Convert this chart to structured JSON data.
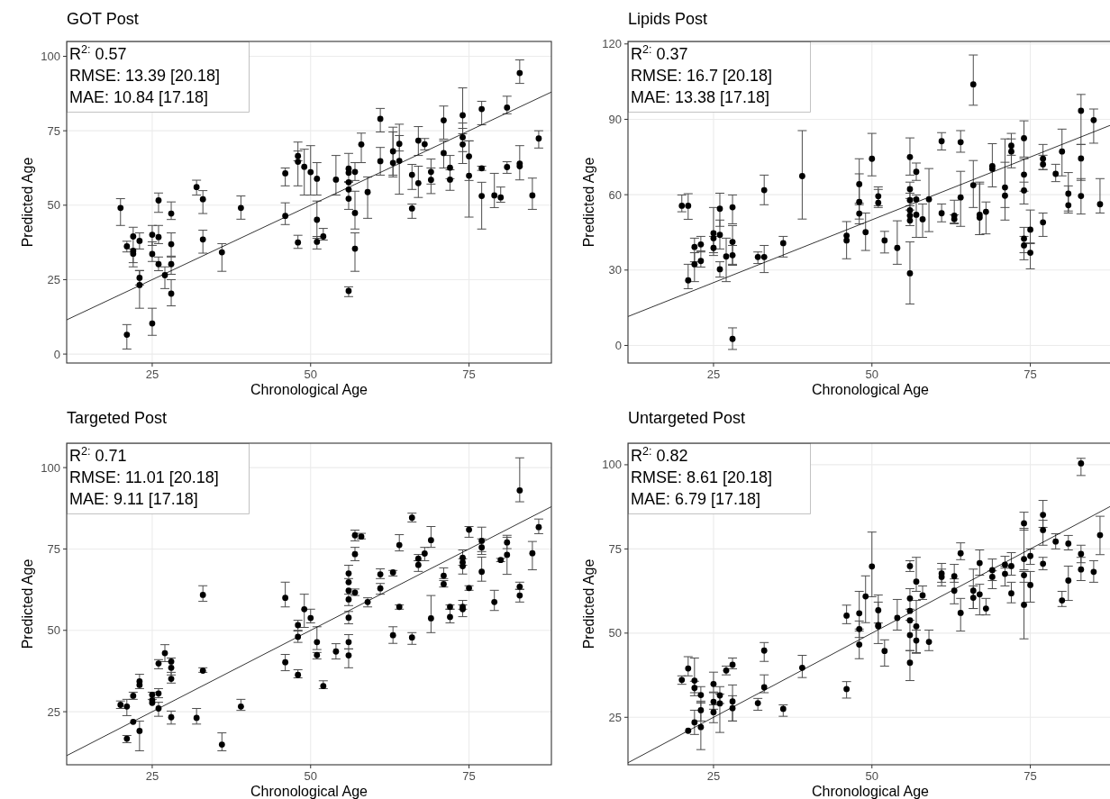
{
  "chart_data": [
    {
      "type": "scatter",
      "title": "GOT Post",
      "xlabel": "Chronological Age",
      "ylabel": "Predicted Age",
      "annotations": [
        "R$^{2:}$ 0.57",
        "RMSE: 13.39 [20.18]",
        "MAE: 10.84 [17.18]"
      ],
      "xlim": [
        11.5,
        88
      ],
      "ylim": [
        -3,
        105
      ],
      "xticks": [
        25,
        50,
        75
      ],
      "yticks": [
        0,
        25,
        50,
        75,
        100
      ],
      "grid": true,
      "series": [
        {
          "marker": "circle",
          "color": "#000000",
          "x": [
            20,
            21,
            21,
            22,
            22,
            22,
            23,
            23,
            23,
            25,
            25,
            25,
            26,
            26,
            26,
            27,
            28,
            28,
            28,
            28,
            32,
            33,
            33,
            36,
            39,
            46,
            46,
            48,
            48,
            48,
            49,
            50,
            51,
            51,
            51,
            52,
            54,
            56,
            56,
            56,
            56,
            56,
            56,
            57,
            57,
            57,
            58,
            59,
            61,
            61,
            63,
            63,
            64,
            64,
            66,
            66,
            67,
            67,
            68,
            69,
            69,
            71,
            71,
            72,
            72,
            74,
            74,
            74,
            75,
            75,
            77,
            77,
            77,
            79,
            80,
            81,
            81,
            83,
            83,
            83,
            85,
            86
          ],
          "values": [
            49.1,
            36.2,
            6.5,
            39.5,
            33.7,
            34.7,
            38,
            25.6,
            23.2,
            40.1,
            33.6,
            10.3,
            51.6,
            39.3,
            30.2,
            26.5,
            47.2,
            36.9,
            30.2,
            20.3,
            56.1,
            52,
            38.5,
            34.2,
            49.1,
            46.4,
            60.7,
            37.5,
            64.6,
            66.5,
            62.9,
            61.1,
            58.9,
            45.1,
            37.7,
            39.5,
            58.6,
            62.3,
            60.9,
            57.7,
            55.3,
            52.2,
            21.2,
            61.2,
            47.4,
            35.4,
            70.4,
            54.4,
            79,
            64.8,
            64.2,
            68.1,
            64.9,
            70.6,
            48.9,
            60.2,
            71.7,
            57.4,
            70.5,
            61.2,
            58.5,
            78.5,
            67.5,
            62.6,
            58.6,
            80.2,
            72.8,
            70.4,
            66.4,
            59.9,
            82.3,
            62.4,
            53.1,
            53.3,
            52.6,
            82.8,
            62.8,
            94.4,
            64,
            63.1,
            53.3,
            72.4
          ],
          "errors": [
            [
              43.2,
              52.2
            ],
            [
              34.3,
              37.9
            ],
            [
              1.7,
              9.9
            ],
            [
              30.7,
              42.6
            ],
            [
              29.3,
              35.3
            ],
            null,
            [
              35.3,
              40.7
            ],
            [
              23.2,
              28.1
            ],
            [
              15.4,
              28
            ],
            [
              36.5,
              43.2
            ],
            [
              31.1,
              37.7
            ],
            [
              6.3,
              15.4
            ],
            [
              47.6,
              54.1
            ],
            [
              37.1,
              43.2
            ],
            [
              28,
              32.6
            ],
            [
              22,
              29.3
            ],
            [
              45.2,
              51.1
            ],
            [
              32.9,
              40.7
            ],
            [
              26.8,
              32.6
            ],
            [
              16.2,
              25
            ],
            [
              53.4,
              58.4
            ],
            [
              47.2,
              54.9
            ],
            [
              33.9,
              41.6
            ],
            [
              27.8,
              37.1
            ],
            [
              45.3,
              53.1
            ],
            [
              43.5,
              50.8
            ],
            [
              56.5,
              62.5
            ],
            [
              35.5,
              39.9
            ],
            [
              56.5,
              71.2
            ],
            [
              64.9,
              68.2
            ],
            [
              53.4,
              68.8
            ],
            [
              53.4,
              70
            ],
            [
              53.4,
              64.3
            ],
            [
              38.9,
              51.4
            ],
            [
              35.3,
              39.5
            ],
            [
              38.3,
              42.2
            ],
            [
              53.4,
              66.7
            ],
            [
              57.9,
              67.4
            ],
            null,
            null,
            null,
            [
              48.6,
              57.7
            ],
            [
              19.3,
              22.6
            ],
            [
              58.3,
              64.3
            ],
            [
              42,
              54.7
            ],
            [
              27.8,
              40.7
            ],
            [
              64.3,
              74.2
            ],
            [
              45.6,
              59.5
            ],
            [
              74.6,
              82.5
            ],
            [
              60.1,
              69.4
            ],
            [
              59.5,
              76.2
            ],
            [
              60.1,
              74.6
            ],
            [
              53.7,
              73.4
            ],
            [
              68.2,
              77.2
            ],
            [
              45.6,
              50.4
            ],
            [
              55.3,
              63.7
            ],
            [
              66.7,
              76.4
            ],
            [
              52.6,
              63.1
            ],
            [
              68.6,
              72.4
            ],
            [
              57.1,
              65.5
            ],
            [
              53.9,
              62.5
            ],
            [
              72.2,
              83.3
            ],
            [
              62.5,
              71.6
            ],
            [
              58.9,
              66.7
            ],
            [
              55,
              61.9
            ],
            [
              74,
              89.4
            ],
            [
              68,
              77.6
            ],
            [
              64,
              75.8
            ],
            [
              58.3,
              71.6
            ],
            [
              46,
              71.6
            ],
            [
              77,
              84.9
            ],
            [
              61.7,
              63.1
            ],
            [
              42,
              57.7
            ],
            [
              49.2,
              60.7
            ],
            [
              51,
              56.1
            ],
            [
              80.7,
              86.6
            ],
            [
              60.7,
              64.6
            ],
            [
              90.9,
              98.8
            ],
            [
              58.5,
              70
            ],
            null,
            [
              48.6,
              59.1
            ],
            [
              69.2,
              75
            ]
          ]
        },
        {
          "type": "line",
          "color": "#000000",
          "x": [
            11.5,
            88
          ],
          "values": [
            11.5,
            88
          ]
        }
      ]
    },
    {
      "type": "scatter",
      "title": "Lipids Post",
      "xlabel": "Chronological Age",
      "ylabel": "Predicted Age",
      "annotations": [
        "R$^{2:}$ 0.37",
        "RMSE: 16.7 [20.18]",
        "MAE: 13.38 [17.18]"
      ],
      "xlim": [
        11.5,
        88
      ],
      "ylim": [
        -7,
        121
      ],
      "xticks": [
        25,
        50,
        75
      ],
      "yticks": [
        0,
        30,
        60,
        90,
        120
      ],
      "grid": true,
      "series": [
        {
          "marker": "circle",
          "color": "#000000",
          "x": [
            20,
            21,
            21,
            22,
            22,
            23,
            23,
            25,
            25,
            25,
            26,
            26,
            26,
            27,
            28,
            28,
            28,
            28,
            32,
            33,
            33,
            36,
            39,
            46,
            46,
            48,
            48,
            48,
            49,
            50,
            51,
            51,
            52,
            54,
            56,
            56,
            56,
            56,
            56,
            56,
            56,
            57,
            57,
            57,
            58,
            59,
            61,
            61,
            63,
            63,
            64,
            64,
            66,
            66,
            67,
            67,
            68,
            69,
            69,
            71,
            71,
            72,
            72,
            74,
            74,
            74,
            74,
            74,
            75,
            75,
            77,
            77,
            77,
            79,
            80,
            81,
            81,
            83,
            83,
            83,
            85,
            86
          ],
          "values": [
            55.6,
            55.6,
            25.9,
            39.2,
            32.3,
            40.2,
            33.6,
            44.7,
            42.7,
            38.8,
            54.4,
            44,
            30.3,
            35.4,
            55,
            41.2,
            35.9,
            2.6,
            35.2,
            35.2,
            61.8,
            40.7,
            67.4,
            41.8,
            43.7,
            64.2,
            57.1,
            52.5,
            45.1,
            74.3,
            59.4,
            56.8,
            41.8,
            38.8,
            75,
            62.2,
            57.8,
            53.8,
            51.7,
            49.7,
            28.7,
            69.1,
            58.1,
            52,
            50.2,
            58.2,
            52.6,
            81.3,
            51.7,
            50.3,
            58.9,
            80.9,
            103.9,
            63.8,
            52,
            50.9,
            53.2,
            70.3,
            71.4,
            59.6,
            62.9,
            79.5,
            77.2,
            82.5,
            68,
            61.7,
            42.5,
            39.8,
            46.1,
            36.9,
            74.3,
            72.1,
            49,
            68.3,
            77.2,
            60.4,
            55.8,
            93.4,
            74.4,
            59.5,
            89.7,
            56.2
          ],
          "errors": [
            [
              53.2,
              59.9
            ],
            [
              50.2,
              60.4
            ],
            [
              22.6,
              32.3
            ],
            [
              33.3,
              42.7
            ],
            [
              25.4,
              36.9
            ],
            [
              37.2,
              43.4
            ],
            [
              31.2,
              37.6
            ],
            [
              36.9,
              54.9
            ],
            null,
            [
              35.8,
              43.4
            ],
            [
              47.4,
              60.6
            ],
            [
              38.4,
              49.9
            ],
            [
              27.2,
              33.3
            ],
            [
              25.4,
              42.7
            ],
            [
              48.4,
              59.9
            ],
            [
              32.3,
              47.7
            ],
            [
              31.9,
              39.8
            ],
            [
              -1.6,
              7
            ],
            [
              32.6,
              37.2
            ],
            [
              29,
              39.8
            ],
            [
              56,
              67.8
            ],
            [
              35.2,
              43.4
            ],
            [
              50.3,
              85.5
            ],
            [
              34.5,
              49.3
            ],
            null,
            [
              56,
              74.3
            ],
            [
              50.3,
              68.3
            ],
            [
              48.4,
              56.6
            ],
            [
              37.8,
              52.7
            ],
            [
              67.5,
              84.4
            ],
            [
              55.6,
              63.1
            ],
            [
              54.9,
              62.1
            ],
            [
              36.8,
              45.4
            ],
            [
              32.3,
              49.6
            ],
            [
              67.8,
              82.6
            ],
            [
              58.5,
              65
            ],
            [
              53.9,
              60.6
            ],
            null,
            null,
            [
              47.7,
              55.6
            ],
            [
              16.5,
              41.2
            ],
            [
              65.7,
              72.6
            ],
            null,
            [
              43,
              59.9
            ],
            [
              43,
              56.3
            ],
            [
              45.3,
              70.4
            ],
            [
              49.2,
              56.3
            ],
            [
              77.8,
              84.7
            ],
            [
              48.7,
              57.8
            ],
            [
              48.4,
              52
            ],
            [
              47.4,
              69.3
            ],
            [
              76.9,
              85.5
            ],
            [
              95.6,
              115.6
            ],
            [
              54.9,
              73.6
            ],
            [
              44.1,
              65
            ],
            [
              44.1,
              64.3
            ],
            [
              44.4,
              57.1
            ],
            [
              63.1,
              80.3
            ],
            null,
            [
              49.9,
              82.2
            ],
            [
              54.9,
              72.9
            ],
            [
              75.7,
              84.4
            ],
            [
              70.7,
              82.2
            ],
            [
              75,
              89.4
            ],
            [
              61.4,
              74.3
            ],
            [
              56.3,
              65
            ],
            [
              36.9,
              47
            ],
            [
              34.1,
              43.4
            ],
            [
              40.5,
              53.9
            ],
            [
              30.5,
              40.8
            ],
            [
              70,
              80
            ],
            [
              70,
              75.7
            ],
            [
              43.4,
              52.7
            ],
            [
              65.2,
              72.1
            ],
            [
              67.5,
              86.1
            ],
            [
              52.7,
              68.8
            ],
            [
              53.5,
              63.5
            ],
            [
              80,
              99.9
            ],
            [
              65.7,
              80
            ],
            [
              52.3,
              66.4
            ],
            [
              80.5,
              94.1
            ],
            [
              52.7,
              66.4
            ]
          ]
        },
        {
          "type": "line",
          "color": "#000000",
          "x": [
            11.5,
            88
          ],
          "values": [
            11.5,
            88
          ]
        }
      ]
    },
    {
      "type": "scatter",
      "title": "Targeted Post",
      "xlabel": "Chronological Age",
      "ylabel": "Predicted Age",
      "annotations": [
        "R$^{2:}$ 0.71",
        "RMSE: 11.01 [20.18]",
        "MAE: 9.11 [17.18]"
      ],
      "xlim": [
        11.5,
        88
      ],
      "ylim": [
        8.7,
        107.5
      ],
      "xticks": [
        25,
        50,
        75
      ],
      "yticks": [
        25,
        50,
        75,
        100
      ],
      "grid": true,
      "series": [
        {
          "marker": "circle",
          "color": "#000000",
          "x": [
            20,
            21,
            21,
            22,
            22,
            23,
            23,
            23,
            25,
            25,
            25,
            26,
            26,
            26,
            27,
            28,
            28,
            28,
            28,
            32,
            33,
            33,
            36,
            39,
            46,
            46,
            48,
            48,
            48,
            49,
            50,
            51,
            51,
            52,
            54,
            56,
            56,
            56,
            56,
            56,
            56,
            56,
            57,
            57,
            57,
            58,
            59,
            61,
            61,
            63,
            63,
            64,
            64,
            66,
            66,
            67,
            67,
            68,
            69,
            69,
            71,
            71,
            72,
            72,
            74,
            74,
            74,
            74,
            74,
            75,
            75,
            77,
            77,
            77,
            79,
            80,
            81,
            81,
            83,
            83,
            83,
            85,
            86
          ],
          "values": [
            27.1,
            26.6,
            16.7,
            29.9,
            21.9,
            34.3,
            33.2,
            19.1,
            30.2,
            28.5,
            27.7,
            30.6,
            26,
            39.8,
            43,
            38.5,
            40.4,
            35.1,
            23.3,
            23.1,
            37.6,
            60.9,
            14.9,
            26.6,
            60,
            40.2,
            36.3,
            48,
            51.6,
            56.5,
            53.8,
            46.4,
            42.4,
            32.9,
            43.5,
            42.3,
            46.4,
            53.9,
            59.5,
            62.2,
            64.8,
            67.5,
            79.2,
            73.4,
            61.6,
            78.8,
            58.7,
            62.9,
            67.2,
            67.8,
            48.5,
            76.2,
            57.2,
            84.6,
            47.8,
            70.1,
            72,
            73.6,
            77.7,
            53.7,
            66.8,
            64.2,
            57.2,
            54.1,
            72.3,
            70.9,
            69.7,
            57.2,
            56.5,
            80.9,
            63,
            77.5,
            75.5,
            68,
            58.7,
            71.6,
            77,
            73.2,
            93,
            63.4,
            60.7,
            73.7,
            81.7
          ],
          "errors": [
            [
              26,
              28.3
            ],
            [
              23.8,
              28.8
            ],
            [
              15.5,
              17.7
            ],
            [
              28.8,
              31
            ],
            null,
            [
              32.1,
              36.5
            ],
            null,
            [
              13,
              22.1
            ],
            [
              28.8,
              31
            ],
            null,
            null,
            [
              29.3,
              32.1
            ],
            [
              23.6,
              27.9
            ],
            [
              38.2,
              41
            ],
            [
              40.4,
              45.6
            ],
            [
              36.3,
              41.5
            ],
            null,
            [
              33.8,
              37.1
            ],
            [
              21.2,
              25.2
            ],
            [
              21.2,
              26
            ],
            [
              37.1,
              38.5
            ],
            [
              58.9,
              63.7
            ],
            [
              13,
              18.5
            ],
            [
              25.4,
              28.8
            ],
            [
              57.2,
              64.8
            ],
            [
              37.6,
              42.6
            ],
            [
              35.4,
              37.9
            ],
            [
              46.3,
              49.8
            ],
            [
              50,
              53.1
            ],
            [
              50.9,
              61.1
            ],
            [
              52.3,
              56.5
            ],
            [
              44.1,
              51.1
            ],
            [
              41.2,
              43.2
            ],
            [
              32.1,
              34.5
            ],
            [
              41.2,
              45.9
            ],
            [
              38.5,
              44.3
            ],
            [
              44.3,
              48.7
            ],
            [
              52,
              55.8
            ],
            [
              57.6,
              61.1
            ],
            null,
            null,
            [
              65.9,
              70
            ],
            [
              77.5,
              80.8
            ],
            [
              71.4,
              75.5
            ],
            [
              60.7,
              62.7
            ],
            [
              78.1,
              79.8
            ],
            [
              57.2,
              60
            ],
            [
              61.1,
              64.4
            ],
            [
              65.9,
              68.9
            ],
            [
              66.7,
              68.4
            ],
            [
              46,
              51.1
            ],
            [
              74.4,
              79.4
            ],
            [
              56.5,
              57.8
            ],
            [
              83.3,
              86
            ],
            [
              45.7,
              49.3
            ],
            [
              68.1,
              71.4
            ],
            [
              71.4,
              73.3
            ],
            [
              71.4,
              75.5
            ],
            [
              75.5,
              81.9
            ],
            [
              49.3,
              60.7
            ],
            [
              65.9,
              69.2
            ],
            [
              63.3,
              65.3
            ],
            [
              56.5,
              57.8
            ],
            [
              52.3,
              56.5
            ],
            [
              70,
              74.7
            ],
            null,
            [
              67.3,
              72
            ],
            [
              56.5,
              59.2
            ],
            [
              54.2,
              57.8
            ],
            [
              78.6,
              81.9
            ],
            [
              62.3,
              63.7
            ],
            [
              74.2,
              81.7
            ],
            [
              73.3,
              78.1
            ],
            [
              65.1,
              72.5
            ],
            [
              56.1,
              62.3
            ],
            [
              71.1,
              72.1
            ],
            [
              75.1,
              79.2
            ],
            [
              67.2,
              78.6
            ],
            [
              89.5,
              103
            ],
            [
              62.6,
              64.8
            ],
            [
              58.7,
              62.6
            ],
            [
              68.6,
              77.3
            ],
            [
              79.7,
              84.2
            ]
          ]
        },
        {
          "type": "line",
          "color": "#000000",
          "x": [
            11.5,
            88
          ],
          "values": [
            11.5,
            88
          ]
        }
      ]
    },
    {
      "type": "scatter",
      "title": "Untargeted Post",
      "xlabel": "Chronological Age",
      "ylabel": "Predicted Age",
      "annotations": [
        "R$^{2:}$ 0.82",
        "RMSE: 8.61 [20.18]",
        "MAE: 6.79 [17.18]"
      ],
      "xlim": [
        11.5,
        88
      ],
      "ylim": [
        10.9,
        106.4
      ],
      "xticks": [
        25,
        50,
        75
      ],
      "yticks": [
        25,
        50,
        75,
        100
      ],
      "grid": true,
      "series": [
        {
          "marker": "circle",
          "color": "#000000",
          "x": [
            20,
            21,
            21,
            22,
            22,
            22,
            23,
            23,
            23,
            25,
            25,
            25,
            26,
            26,
            27,
            28,
            28,
            28,
            32,
            33,
            33,
            36,
            39,
            46,
            46,
            48,
            48,
            48,
            49,
            50,
            51,
            51,
            51,
            52,
            54,
            56,
            56,
            56,
            56,
            56,
            56,
            57,
            57,
            57,
            58,
            59,
            61,
            61,
            63,
            63,
            64,
            64,
            66,
            66,
            67,
            67,
            68,
            69,
            69,
            71,
            71,
            72,
            72,
            74,
            74,
            74,
            74,
            75,
            75,
            77,
            77,
            77,
            79,
            80,
            81,
            81,
            83,
            83,
            83,
            85,
            86
          ],
          "values": [
            36.1,
            39.5,
            21,
            35.9,
            33.7,
            23.5,
            31.6,
            27.1,
            22.1,
            34.9,
            29.6,
            26.5,
            31.5,
            29.1,
            38.9,
            40.6,
            29.7,
            27.7,
            29.2,
            33.9,
            44.8,
            27.5,
            39.7,
            33.4,
            55.2,
            55.9,
            51.2,
            46.6,
            60.9,
            69.8,
            56.8,
            52,
            52.4,
            44.7,
            54.5,
            69.9,
            60.3,
            56.6,
            53.8,
            49.4,
            41.2,
            65.3,
            52,
            47.8,
            61.2,
            47.4,
            66.7,
            67.7,
            66.9,
            62.6,
            73.7,
            56,
            62.6,
            60.5,
            70.8,
            61.5,
            57.3,
            68.7,
            66.7,
            70.3,
            67.6,
            69.9,
            61.8,
            82.6,
            72,
            67.2,
            58.4,
            72.9,
            64.3,
            85.1,
            80.6,
            70.6,
            77.2,
            59.7,
            76.6,
            65.6,
            100.4,
            73.5,
            68.9,
            68.2,
            79.1
          ],
          "errors": [
            [
              34.8,
              37.3
            ],
            [
              37.3,
              43
            ],
            null,
            [
              32.3,
              42.6
            ],
            [
              31.4,
              35.7
            ],
            [
              19.9,
              27.1
            ],
            [
              29.3,
              34.1
            ],
            [
              23.9,
              29.8
            ],
            [
              15.4,
              29.3
            ],
            [
              32.5,
              38.4
            ],
            [
              27.4,
              32.3
            ],
            [
              23.4,
              28.7
            ],
            [
              29.1,
              34.1
            ],
            [
              20.5,
              31.9
            ],
            [
              37.6,
              40.2
            ],
            [
              39.4,
              42.6
            ],
            [
              23.9,
              34.6
            ],
            [
              23.9,
              31.4
            ],
            [
              27.1,
              30.6
            ],
            [
              32.3,
              37.6
            ],
            [
              41.6,
              47.2
            ],
            [
              25.3,
              28.7
            ],
            [
              36.8,
              43.4
            ],
            [
              30.7,
              35.6
            ],
            [
              52.8,
              58.3
            ],
            [
              51.2,
              62.4
            ],
            [
              48.7,
              53.6
            ],
            [
              42.4,
              50.6
            ],
            [
              53.1,
              67
            ],
            [
              60.8,
              80
            ],
            [
              53,
              61.3
            ],
            [
              46.9,
              59.2
            ],
            null,
            [
              40.2,
              48
            ],
            [
              50.9,
              60
            ],
            [
              68.3,
              71.5
            ],
            [
              57.1,
              63.2
            ],
            null,
            null,
            [
              44.8,
              53.8
            ],
            [
              35.9,
              44.8
            ],
            [
              62.4,
              72.5
            ],
            [
              44.2,
              59.7
            ],
            [
              44,
              50.9
            ],
            [
              60,
              64
            ],
            [
              44.8,
              50.9
            ],
            [
              65.1,
              69
            ],
            [
              64,
              70.7
            ],
            [
              65.1,
              70.4
            ],
            [
              58.7,
              66.1
            ],
            [
              71.8,
              76.8
            ],
            [
              50.6,
              60.3
            ],
            [
              57.3,
              69
            ],
            [
              57.3,
              64
            ],
            [
              67.2,
              74.7
            ],
            [
              55.4,
              64.5
            ],
            [
              55.4,
              60.3
            ],
            [
              65.6,
              72
            ],
            [
              63.2,
              68.5
            ],
            [
              69.3,
              72.8
            ],
            [
              64,
              69.9
            ],
            [
              67.2,
              73.9
            ],
            [
              59,
              65.1
            ],
            [
              80.6,
              85.9
            ],
            [
              68.8,
              81.1
            ],
            [
              65.1,
              68.3
            ],
            [
              48.3,
              68.3
            ],
            [
              70.4,
              75
            ],
            [
              59.2,
              68.3
            ],
            [
              81.4,
              89.4
            ],
            [
              76.1,
              83.5
            ],
            [
              68.8,
              72.5
            ],
            [
              75,
              79.5
            ],
            [
              57.9,
              62.4
            ],
            [
              74.7,
              79
            ],
            [
              59.7,
              69.9
            ],
            [
              96.8,
              101.9
            ],
            [
              70.9,
              76.1
            ],
            [
              65.6,
              72.5
            ],
            [
              65.1,
              71.5
            ],
            [
              73.3,
              84.7
            ]
          ]
        },
        {
          "type": "line",
          "color": "#000000",
          "x": [
            11.5,
            88
          ],
          "values": [
            11.5,
            88
          ]
        }
      ]
    }
  ]
}
